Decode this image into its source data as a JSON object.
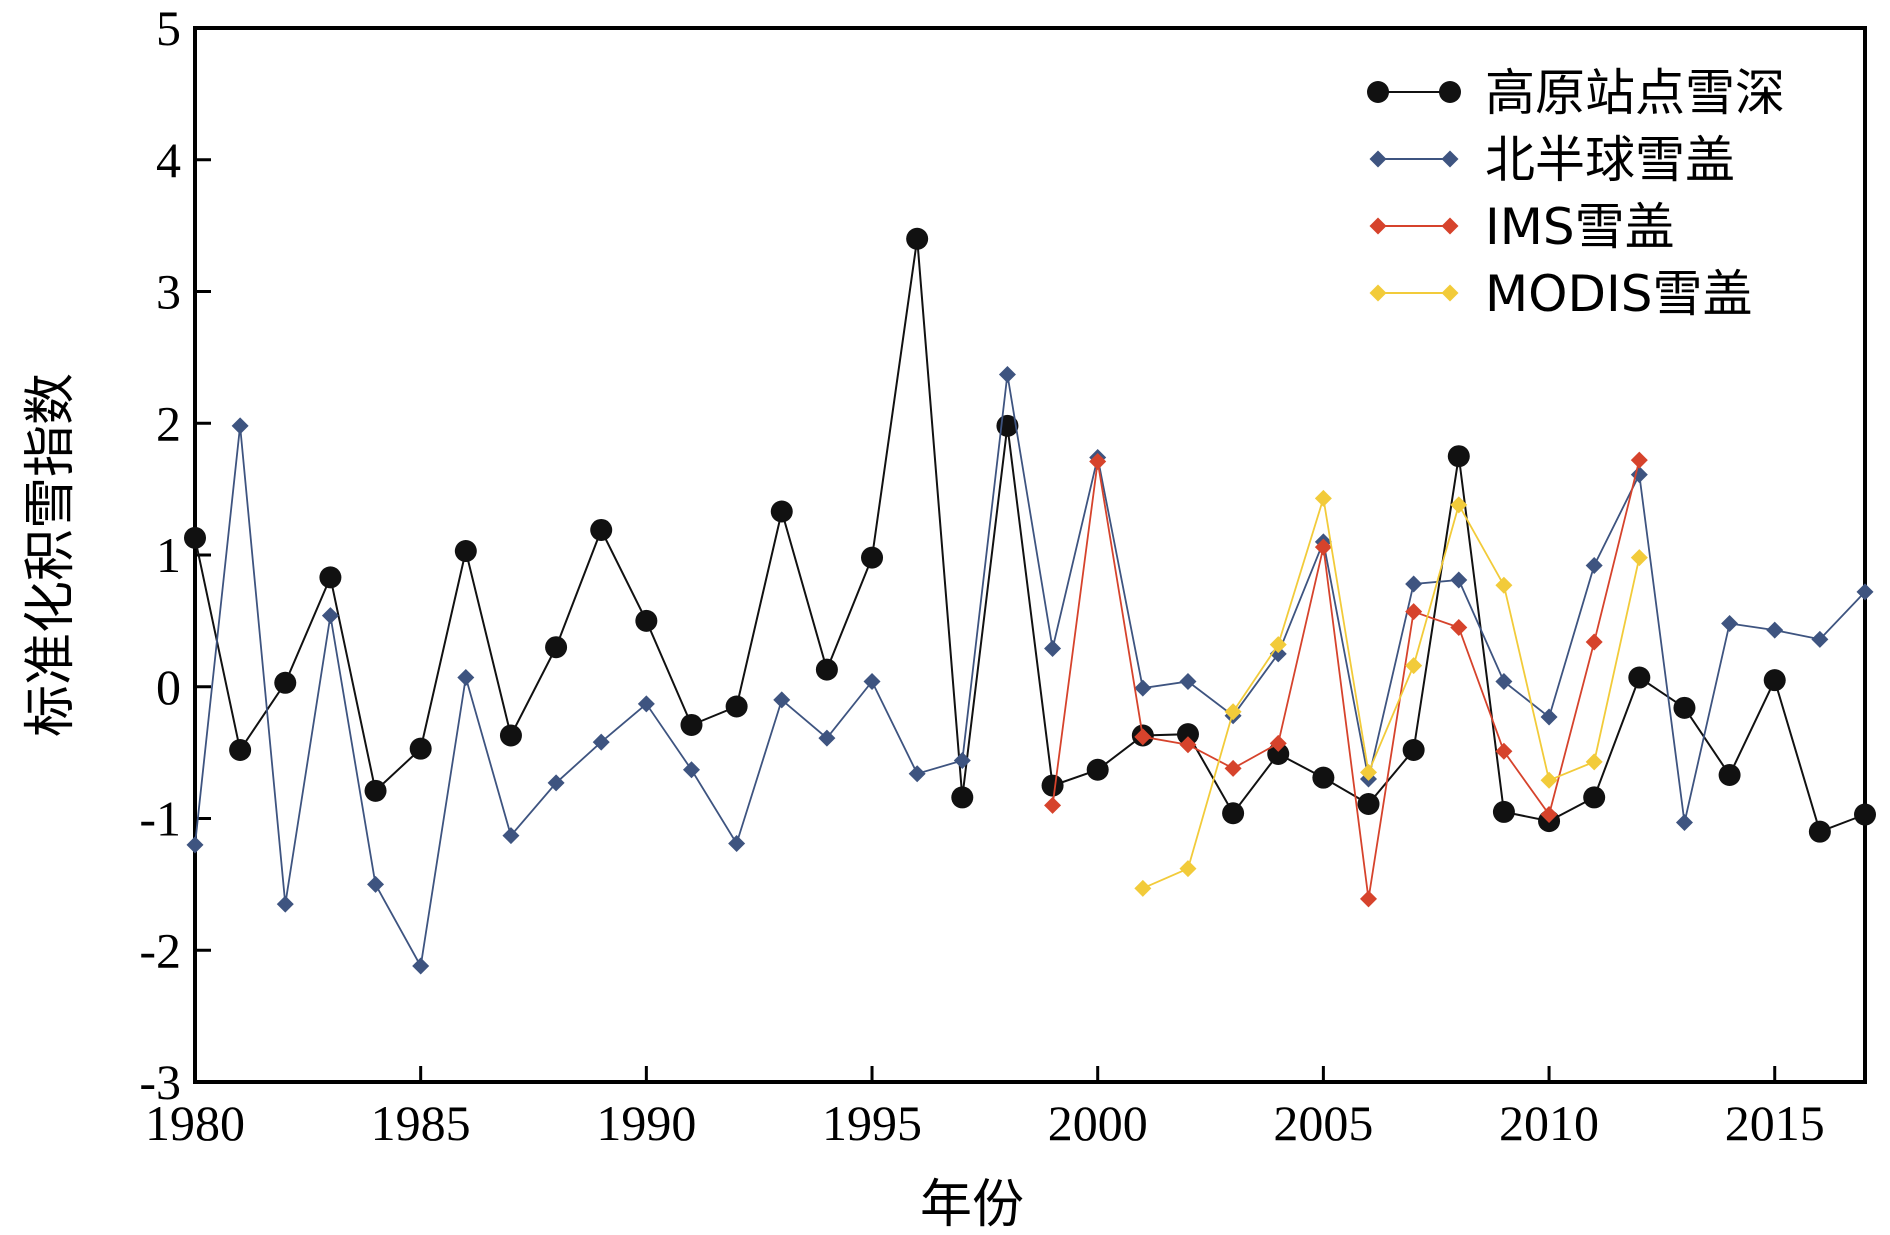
{
  "chart_data": {
    "type": "line",
    "xlabel": "年份",
    "ylabel": "标准化积雪指数",
    "xlim": [
      1980,
      2017
    ],
    "ylim": [
      -3,
      5
    ],
    "xticks": [
      "1980",
      "1985",
      "1990",
      "1995",
      "2000",
      "2005",
      "2010",
      "2015"
    ],
    "yticks": [
      "5",
      "4",
      "3",
      "2",
      "1",
      "0",
      "-1",
      "-2",
      "-3"
    ],
    "grid": false,
    "legend_position": "top-right",
    "series": [
      {
        "name": "高原站点雪深",
        "color": "#111111",
        "marker": "circle",
        "x": [
          1980,
          1981,
          1982,
          1983,
          1984,
          1985,
          1986,
          1987,
          1988,
          1989,
          1990,
          1991,
          1992,
          1993,
          1994,
          1995,
          1996,
          1997,
          1998,
          1999,
          2000,
          2001,
          2002,
          2003,
          2004,
          2005,
          2006,
          2007,
          2008,
          2009,
          2010,
          2011,
          2012,
          2013,
          2014,
          2015,
          2016,
          2017
        ],
        "y": [
          1.13,
          -0.48,
          0.03,
          0.83,
          -0.79,
          -0.47,
          1.03,
          -0.37,
          0.3,
          1.19,
          0.5,
          -0.29,
          -0.15,
          1.33,
          0.13,
          0.98,
          3.4,
          -0.84,
          1.98,
          -0.75,
          -0.63,
          -0.37,
          -0.36,
          -0.96,
          -0.51,
          -0.69,
          -0.89,
          -0.48,
          1.75,
          -0.95,
          -1.02,
          -0.84,
          0.07,
          -0.16,
          -0.67,
          0.05,
          -1.1,
          -0.97
        ]
      },
      {
        "name": "北半球雪盖",
        "color": "#3e5480",
        "marker": "diamond",
        "x": [
          1980,
          1981,
          1982,
          1983,
          1984,
          1985,
          1986,
          1987,
          1988,
          1989,
          1990,
          1991,
          1992,
          1993,
          1994,
          1995,
          1996,
          1997,
          1998,
          1999,
          2000,
          2001,
          2002,
          2003,
          2004,
          2005,
          2006,
          2007,
          2008,
          2009,
          2010,
          2011,
          2012,
          2013,
          2014,
          2015,
          2016,
          2017
        ],
        "y": [
          -1.2,
          1.98,
          -1.65,
          0.54,
          -1.5,
          -2.12,
          0.07,
          -1.13,
          -0.73,
          -0.42,
          -0.13,
          -0.63,
          -1.19,
          -0.1,
          -0.39,
          0.04,
          -0.66,
          -0.56,
          2.37,
          0.29,
          1.74,
          -0.01,
          0.04,
          -0.22,
          0.25,
          1.1,
          -0.7,
          0.78,
          0.81,
          0.04,
          -0.23,
          0.92,
          1.61,
          -1.03,
          0.48,
          0.43,
          0.36,
          0.72
        ]
      },
      {
        "name": "IMS雪盖",
        "color": "#d6432c",
        "marker": "diamond",
        "x": [
          1999,
          2000,
          2001,
          2002,
          2003,
          2004,
          2005,
          2006,
          2007,
          2008,
          2009,
          2010,
          2011,
          2012
        ],
        "y": [
          -0.9,
          1.71,
          -0.38,
          -0.44,
          -0.62,
          -0.43,
          1.06,
          -1.61,
          0.57,
          0.45,
          -0.49,
          -0.97,
          0.34,
          1.72
        ]
      },
      {
        "name": "MODIS雪盖",
        "color": "#f2cb3a",
        "marker": "diamond",
        "x": [
          2001,
          2002,
          2003,
          2004,
          2005,
          2006,
          2007,
          2008,
          2009,
          2010,
          2011,
          2012
        ],
        "y": [
          -1.53,
          -1.38,
          -0.19,
          0.32,
          1.43,
          -0.65,
          0.16,
          1.38,
          0.77,
          -0.71,
          -0.57,
          0.98
        ]
      }
    ]
  }
}
